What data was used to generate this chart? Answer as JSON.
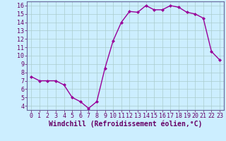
{
  "x": [
    0,
    1,
    2,
    3,
    4,
    5,
    6,
    7,
    8,
    9,
    10,
    11,
    12,
    13,
    14,
    15,
    16,
    17,
    18,
    19,
    20,
    21,
    22,
    23
  ],
  "y": [
    7.5,
    7.0,
    7.0,
    7.0,
    6.5,
    5.0,
    4.5,
    3.7,
    4.5,
    8.5,
    11.8,
    14.0,
    15.3,
    15.2,
    16.0,
    15.5,
    15.5,
    16.0,
    15.8,
    15.2,
    15.0,
    14.5,
    10.5,
    9.5
  ],
  "line_color": "#990099",
  "marker": "D",
  "marker_size": 2,
  "bg_color": "#cceeff",
  "grid_color": "#aacccc",
  "xlabel": "Windchill (Refroidissement éolien,°C)",
  "xlabel_color": "#660066",
  "tick_color": "#660066",
  "xlabel_fontsize": 7,
  "tick_fontsize": 6,
  "ylim": [
    3.5,
    16.5
  ],
  "xlim": [
    -0.5,
    23.5
  ],
  "yticks": [
    4,
    5,
    6,
    7,
    8,
    9,
    10,
    11,
    12,
    13,
    14,
    15,
    16
  ],
  "xticks": [
    0,
    1,
    2,
    3,
    4,
    5,
    6,
    7,
    8,
    9,
    10,
    11,
    12,
    13,
    14,
    15,
    16,
    17,
    18,
    19,
    20,
    21,
    22,
    23
  ],
  "spine_color": "#666699",
  "line_width": 1.0
}
